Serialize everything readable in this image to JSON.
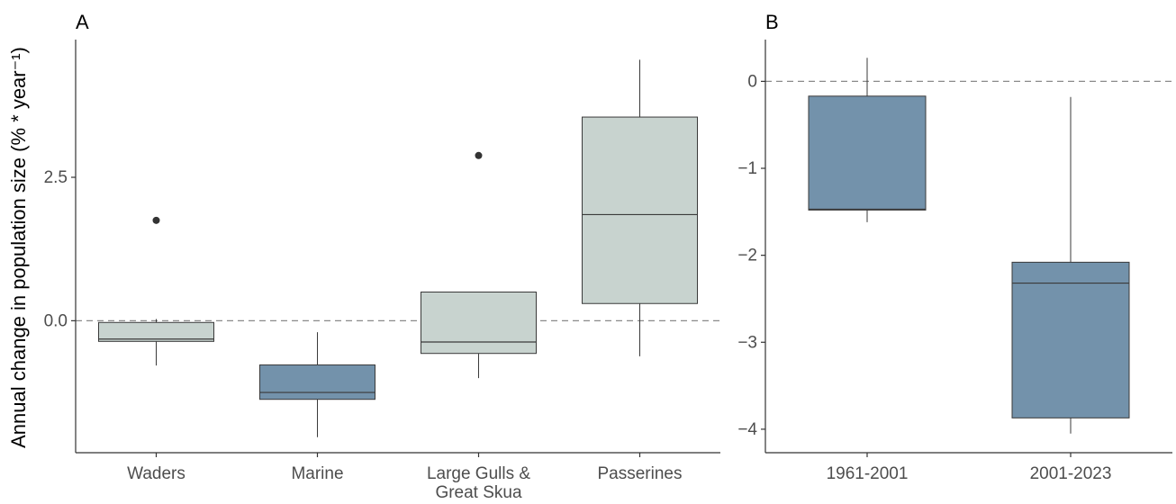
{
  "chart_data": [
    {
      "panel": "A",
      "type": "box",
      "categories": [
        "Waders",
        "Marine",
        "Large Gulls & Great Skua",
        "Passerines"
      ],
      "category_lines": [
        [
          "Waders"
        ],
        [
          "Marine"
        ],
        [
          "Large Gulls &",
          "Great Skua"
        ],
        [
          "Passerines"
        ]
      ],
      "ylabel": "Annual change in population size (% * year⁻¹)",
      "yticks": [
        0.0,
        2.5
      ],
      "ytick_labels": [
        "0.0",
        "2.5"
      ],
      "ylim": [
        -2.3,
        4.9
      ],
      "reference_line": 0,
      "boxes": [
        {
          "category": "Waders",
          "whisker_low": -0.78,
          "q1": -0.36,
          "median": -0.32,
          "q3": -0.03,
          "whisker_high": 0.03,
          "outliers": [
            1.75
          ],
          "fill": "#c8d3cf"
        },
        {
          "category": "Marine",
          "whisker_low": -2.03,
          "q1": -1.37,
          "median": -1.25,
          "q3": -0.77,
          "whisker_high": -0.2,
          "outliers": [],
          "fill": "#7392ab"
        },
        {
          "category": "Large Gulls & Great Skua",
          "whisker_low": -1.0,
          "q1": -0.57,
          "median": -0.37,
          "q3": 0.5,
          "whisker_high": 0.5,
          "outliers": [
            2.88
          ],
          "fill": "#c8d3cf"
        },
        {
          "category": "Passerines",
          "whisker_low": -0.62,
          "q1": 0.3,
          "median": 1.85,
          "q3": 3.55,
          "whisker_high": 4.55,
          "outliers": [],
          "fill": "#c8d3cf"
        }
      ]
    },
    {
      "panel": "B",
      "type": "box",
      "categories": [
        "1961-2001",
        "2001-2023"
      ],
      "category_lines": [
        [
          "1961-2001"
        ],
        [
          "2001-2023"
        ]
      ],
      "yticks": [
        0,
        -1,
        -2,
        -3,
        -4
      ],
      "ytick_labels": [
        "0",
        "−1",
        "−2",
        "−3",
        "−4"
      ],
      "ylim": [
        -4.27,
        0.48
      ],
      "reference_line": 0,
      "boxes": [
        {
          "category": "1961-2001",
          "whisker_low": -1.62,
          "q1": -1.48,
          "median": -1.47,
          "q3": -0.17,
          "whisker_high": 0.27,
          "outliers": [],
          "fill": "#7392ab"
        },
        {
          "category": "2001-2023",
          "whisker_low": -4.05,
          "q1": -3.87,
          "median": -2.32,
          "q3": -2.08,
          "whisker_high": -0.18,
          "outliers": [],
          "fill": "#7392ab"
        }
      ]
    }
  ],
  "colors": {
    "axis": "#333333",
    "box_stroke": "#3a3a3a",
    "outlier": "#333333",
    "reference": "#8a8a8a",
    "tick_text": "#4d4d4d"
  }
}
